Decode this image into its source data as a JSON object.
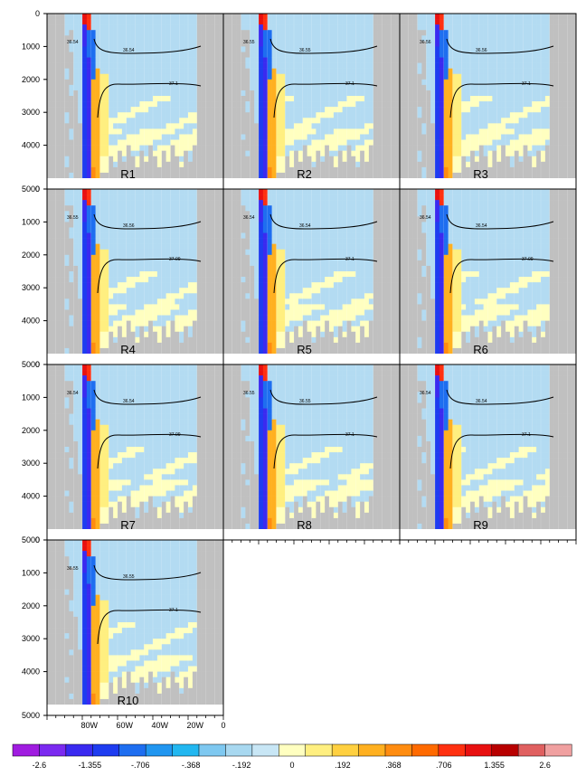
{
  "chart_data": {
    "type": "heatmap",
    "description_of_panels_layout": "",
    "panels": [
      {
        "run": "R1",
        "iso_upper": [
          "36.54",
          "36.54"
        ],
        "iso_lower": "37.1"
      },
      {
        "run": "R2",
        "iso_upper": [
          "36.55",
          "36.55"
        ],
        "iso_lower": "37.1"
      },
      {
        "run": "R3",
        "iso_upper": [
          "36.56",
          "36.56"
        ],
        "iso_lower": "37.1"
      },
      {
        "run": "R4",
        "iso_upper": [
          "36.55",
          "36.56"
        ],
        "iso_lower": "37.09"
      },
      {
        "run": "R5",
        "iso_upper": [
          "36.54",
          "36.54"
        ],
        "iso_lower": "37.1"
      },
      {
        "run": "R6",
        "iso_upper": [
          "36.54",
          "36.54"
        ],
        "iso_lower": "37.09"
      },
      {
        "run": "R7",
        "iso_upper": [
          "36.54",
          "36.54"
        ],
        "iso_lower": "37.09"
      },
      {
        "run": "R8",
        "iso_upper": [
          "36.55",
          "36.55"
        ],
        "iso_lower": "37.1"
      },
      {
        "run": "R9",
        "iso_upper": [
          "36.54",
          "36.54"
        ],
        "iso_lower": "37.1"
      },
      {
        "run": "R10",
        "iso_upper": [
          "36.55",
          "36.55"
        ],
        "iso_lower": "37.1"
      }
    ],
    "y_ticks": [
      "0",
      "1000",
      "2000",
      "3000",
      "4000",
      "5000"
    ],
    "ylim": [
      0,
      5000
    ],
    "x_ticks": [
      "80W",
      "60W",
      "40W",
      "20W",
      "0"
    ],
    "colorbar": {
      "labels": [
        "-2.6",
        "-1.355",
        "-.706",
        "-.368",
        "-.192",
        "0",
        ".192",
        ".368",
        ".706",
        "1.355",
        "2.6"
      ],
      "colors": [
        "#a01ce0",
        "#7b2af0",
        "#3a2af0",
        "#1e3cf0",
        "#1e6ef0",
        "#2196f0",
        "#22b7f0",
        "#7ec8f0",
        "#a8d8f0",
        "#c8e6f5",
        "#ffffc0",
        "#ffef80",
        "#ffd040",
        "#ffb020",
        "#ff8c10",
        "#ff6a00",
        "#ff3010",
        "#e81010",
        "#b80000",
        "#e06060",
        "#f0a0a0"
      ]
    },
    "land_color": "#c0c0c0",
    "nodata_color": "#ffffff"
  }
}
